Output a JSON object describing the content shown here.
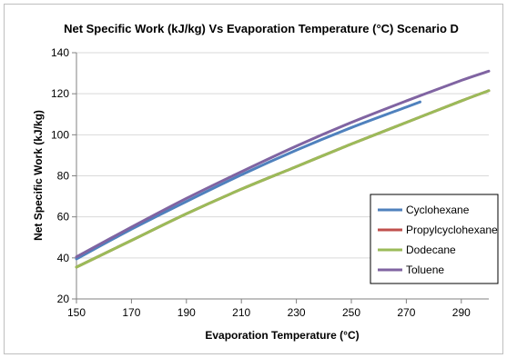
{
  "chart_data": {
    "type": "line",
    "title": "Net Specific Work (kJ/kg) Vs Evaporation Temperature (°C) Scenario D",
    "xlabel": "Evaporation Temperature (°C)",
    "ylabel": "Net Specific Work (kJ/kg)",
    "xlim": [
      150,
      300
    ],
    "ylim": [
      20,
      140
    ],
    "xticks": [
      150,
      170,
      190,
      210,
      230,
      250,
      270,
      290
    ],
    "yticks": [
      20,
      40,
      60,
      80,
      100,
      120,
      140
    ],
    "grid": {
      "horizontal": true,
      "vertical": false
    },
    "legend_position": "bottom-right",
    "series": [
      {
        "name": "Cyclohexane",
        "color": "#4f81bd",
        "x": [
          150,
          170,
          190,
          210,
          230,
          250,
          270,
          275
        ],
        "y": [
          39.5,
          54,
          67.5,
          80.5,
          92.5,
          103.5,
          113.5,
          116
        ]
      },
      {
        "name": "Propylcyclohexane",
        "color": "#c0504d",
        "x": [
          150,
          170,
          190,
          210,
          230,
          250,
          270,
          290,
          300
        ],
        "y": [
          35.5,
          48.5,
          61.5,
          73.5,
          84.5,
          95.5,
          106,
          116.5,
          121.5
        ]
      },
      {
        "name": "Dodecane",
        "color": "#9bbb59",
        "x": [
          150,
          170,
          190,
          210,
          230,
          250,
          270,
          290,
          300
        ],
        "y": [
          35.5,
          48.5,
          61.5,
          73.5,
          84.5,
          95.5,
          106,
          116.5,
          121.5
        ]
      },
      {
        "name": "Toluene",
        "color": "#8064a2",
        "x": [
          150,
          170,
          190,
          210,
          230,
          250,
          270,
          290,
          300
        ],
        "y": [
          40.5,
          55,
          69,
          82,
          94.5,
          106,
          116.5,
          126.5,
          131
        ]
      }
    ]
  }
}
